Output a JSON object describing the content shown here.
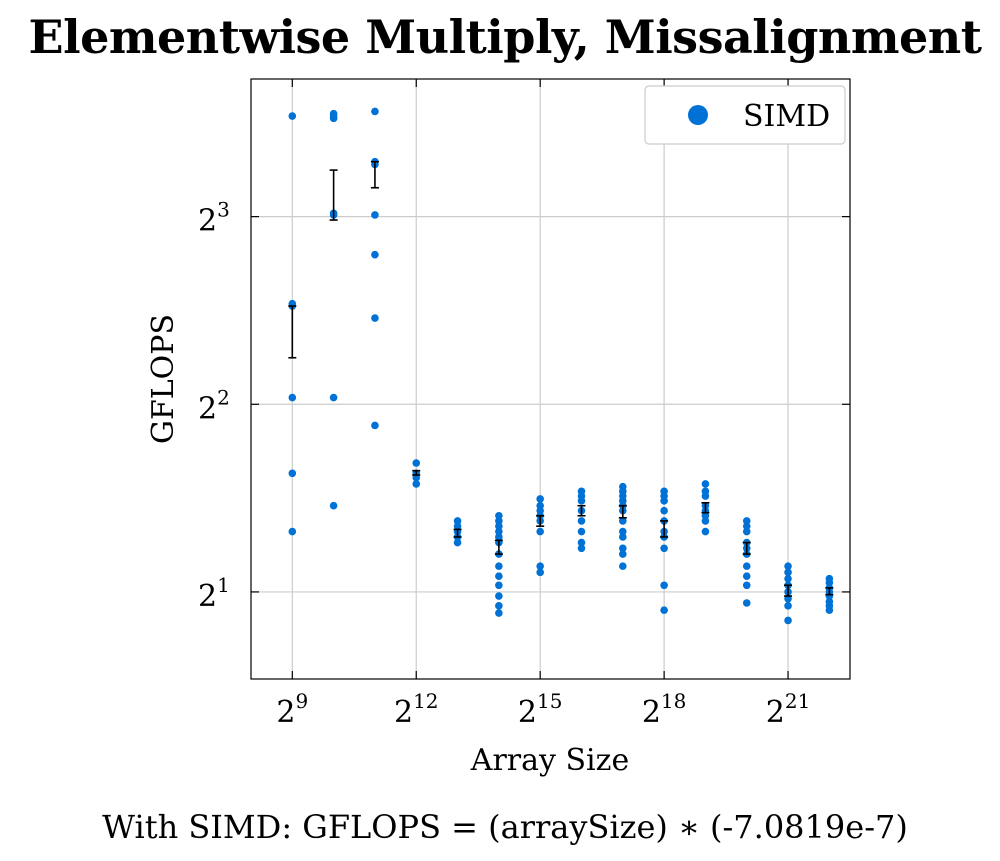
{
  "chart_data": {
    "type": "scatter",
    "title": "Elementwise Multiply, Missalignment",
    "xlabel": "Array Size",
    "ylabel": "GFLOPS",
    "x_scale": "log2",
    "y_scale": "log2",
    "xlim": [
      256,
      5930000
    ],
    "ylim": [
      1.45,
      13.3
    ],
    "x_ticks": [
      {
        "value": 512,
        "base": "2",
        "exp": "9"
      },
      {
        "value": 4096,
        "base": "2",
        "exp": "12"
      },
      {
        "value": 32768,
        "base": "2",
        "exp": "15"
      },
      {
        "value": 262144,
        "base": "2",
        "exp": "18"
      },
      {
        "value": 2097152,
        "base": "2",
        "exp": "21"
      }
    ],
    "y_ticks": [
      {
        "value": 2,
        "base": "2",
        "exp": "1"
      },
      {
        "value": 4,
        "base": "2",
        "exp": "2"
      },
      {
        "value": 8,
        "base": "2",
        "exp": "3"
      }
    ],
    "grid": true,
    "legend": {
      "position": "top-right",
      "entries": [
        "SIMD"
      ]
    },
    "colors": {
      "SIMD": "#0072d6",
      "errorbar": "#000000"
    },
    "series": [
      {
        "name": "SIMD",
        "groups": [
          {
            "x": 512,
            "mean": 5.7,
            "err_low": 4.75,
            "err_high": 5.75,
            "points": [
              11.6,
              5.8,
              5.75,
              4.1,
              3.1,
              2.5
            ]
          },
          {
            "x": 1024,
            "mean": 8.6,
            "err_low": 7.9,
            "err_high": 9.5,
            "points": [
              11.7,
              11.6,
              11.5,
              8.1,
              8.05,
              4.1,
              2.75
            ]
          },
          {
            "x": 2048,
            "mean": 9.65,
            "err_low": 8.9,
            "err_high": 9.8,
            "points": [
              11.8,
              9.8,
              9.7,
              8.05,
              6.95,
              5.5,
              3.7
            ]
          },
          {
            "x": 4096,
            "mean": 3.1,
            "err_low": 3.08,
            "err_high": 3.13,
            "points": [
              3.22,
              3.1,
              3.05,
              2.98
            ]
          },
          {
            "x": 8192,
            "mean": 2.48,
            "err_low": 2.45,
            "err_high": 2.52,
            "points": [
              2.6,
              2.55,
              2.5,
              2.45,
              2.4
            ]
          },
          {
            "x": 16384,
            "mean": 2.35,
            "err_low": 2.3,
            "err_high": 2.42,
            "points": [
              2.65,
              2.6,
              2.55,
              2.5,
              2.45,
              2.4,
              2.3,
              2.2,
              2.12,
              2.05,
              1.97,
              1.9,
              1.85
            ]
          },
          {
            "x": 32768,
            "mean": 2.6,
            "err_low": 2.55,
            "err_high": 2.65,
            "points": [
              2.82,
              2.75,
              2.7,
              2.65,
              2.6,
              2.5,
              2.2,
              2.15
            ]
          },
          {
            "x": 65536,
            "mean": 2.7,
            "err_low": 2.65,
            "err_high": 2.75,
            "points": [
              2.9,
              2.85,
              2.8,
              2.7,
              2.6,
              2.5,
              2.4,
              2.35
            ]
          },
          {
            "x": 131072,
            "mean": 2.7,
            "err_low": 2.63,
            "err_high": 2.75,
            "points": [
              2.95,
              2.9,
              2.85,
              2.8,
              2.75,
              2.7,
              2.6,
              2.5,
              2.45,
              2.35,
              2.3,
              2.2
            ]
          },
          {
            "x": 262144,
            "mean": 2.52,
            "err_low": 2.45,
            "err_high": 2.6,
            "points": [
              2.9,
              2.85,
              2.8,
              2.7,
              2.6,
              2.5,
              2.45,
              2.35,
              2.05,
              1.87
            ]
          },
          {
            "x": 524288,
            "mean": 2.72,
            "err_low": 2.68,
            "err_high": 2.78,
            "points": [
              2.98,
              2.9,
              2.85,
              2.75,
              2.7,
              2.65,
              2.6,
              2.5
            ]
          },
          {
            "x": 1048576,
            "mean": 2.35,
            "err_low": 2.3,
            "err_high": 2.4,
            "points": [
              2.6,
              2.55,
              2.5,
              2.4,
              2.35,
              2.3,
              2.2,
              2.12,
              2.05,
              1.92
            ]
          },
          {
            "x": 2097152,
            "mean": 2.01,
            "err_low": 1.97,
            "err_high": 2.05,
            "points": [
              2.2,
              2.15,
              2.1,
              2.05,
              2.0,
              1.95,
              1.9,
              1.8
            ]
          },
          {
            "x": 4194304,
            "mean": 2.0,
            "err_low": 1.98,
            "err_high": 2.03,
            "points": [
              2.1,
              2.07,
              2.03,
              2.0,
              1.97,
              1.93,
              1.9,
              1.87
            ]
          }
        ]
      }
    ]
  },
  "footer": {
    "formula": "With SIMD:  GFLOPS = (arraySize) ∗ (-7.0819e-7)"
  }
}
